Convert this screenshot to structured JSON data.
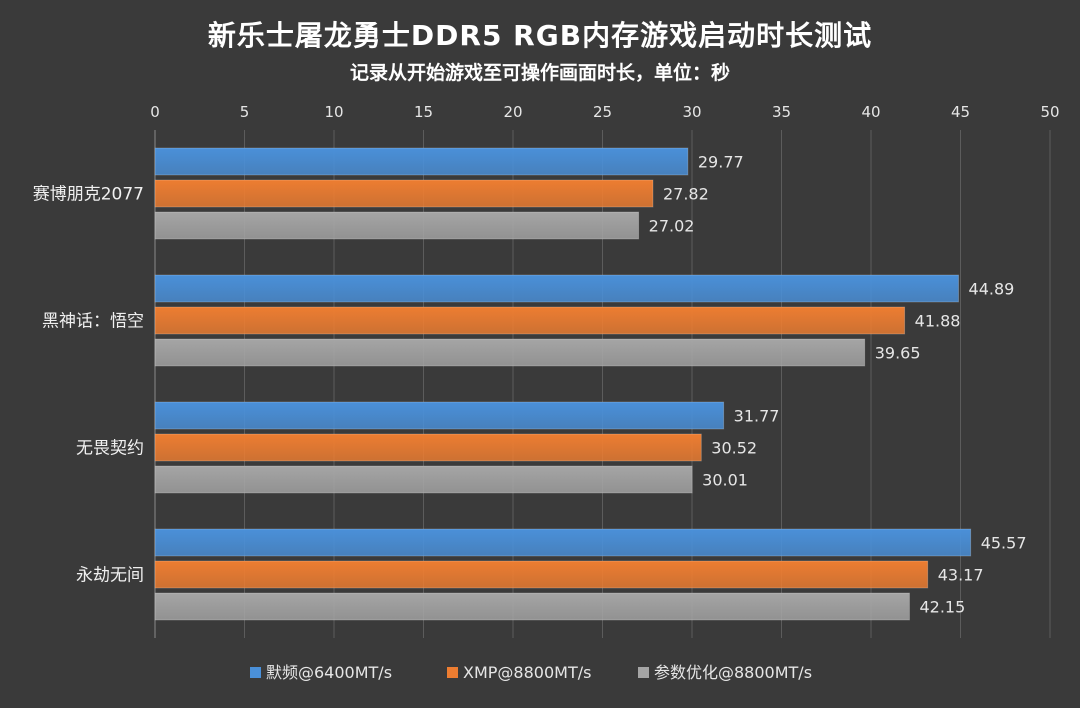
{
  "chart_data": {
    "type": "bar",
    "orientation": "horizontal",
    "title": "新乐士屠龙勇士DDR5 RGB内存游戏启动时长测试",
    "subtitle": "记录从开始游戏至可操作画面时长，单位：秒",
    "categories": [
      "赛博朋克2077",
      "黑神话：悟空",
      "无畏契约",
      "永劫无间"
    ],
    "series": [
      {
        "name": "默频@6400MT/s",
        "color": "#4a90d9",
        "values": [
          29.77,
          44.89,
          31.77,
          45.57
        ],
        "labels": [
          "29.77",
          "44.89",
          "31.77",
          "45.57"
        ]
      },
      {
        "name": "XMP@8800MT/s",
        "color": "#ed7d31",
        "values": [
          27.82,
          41.88,
          30.52,
          43.17
        ],
        "labels": [
          "27.82",
          "41.88",
          "30.52",
          "43.17"
        ]
      },
      {
        "name": "参数优化@8800MT/s",
        "color": "#a5a5a5",
        "values": [
          27.02,
          39.65,
          30.01,
          42.15
        ],
        "labels": [
          "27.02",
          "39.65",
          "30.01",
          "42.15"
        ]
      }
    ],
    "xlim": [
      0,
      50
    ],
    "xticks": [
      "0",
      "5",
      "10",
      "15",
      "20",
      "25",
      "30",
      "35",
      "40",
      "45",
      "50"
    ],
    "x_axis_position": "top",
    "grid": true,
    "legend_position": "bottom"
  }
}
